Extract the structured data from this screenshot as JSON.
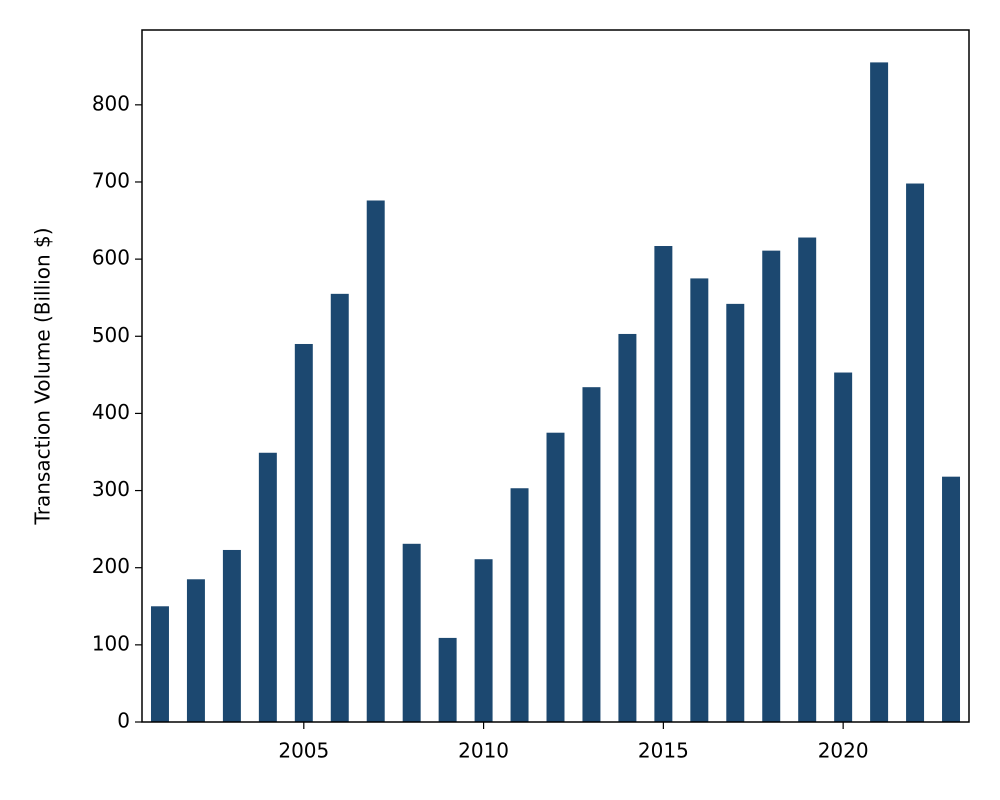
{
  "chart_data": {
    "type": "bar",
    "y_label": "Transaction Volume (Billion $)",
    "x": [
      2001,
      2002,
      2003,
      2004,
      2005,
      2006,
      2007,
      2008,
      2009,
      2010,
      2011,
      2012,
      2013,
      2014,
      2015,
      2016,
      2017,
      2018,
      2019,
      2020,
      2021,
      2022,
      2023
    ],
    "values": [
      150,
      185,
      223,
      349,
      490,
      555,
      676,
      231,
      109,
      211,
      303,
      375,
      434,
      503,
      617,
      575,
      542,
      611,
      628,
      453,
      855,
      698,
      318
    ],
    "color": "#1c4870",
    "xlim": [
      2000.5,
      2023.5
    ],
    "xticks": [
      2005,
      2010,
      2015,
      2020
    ],
    "ylim": [
      0,
      897
    ],
    "yticks": [
      0,
      100,
      200,
      300,
      400,
      500,
      600,
      700,
      800
    ],
    "grid": false
  }
}
